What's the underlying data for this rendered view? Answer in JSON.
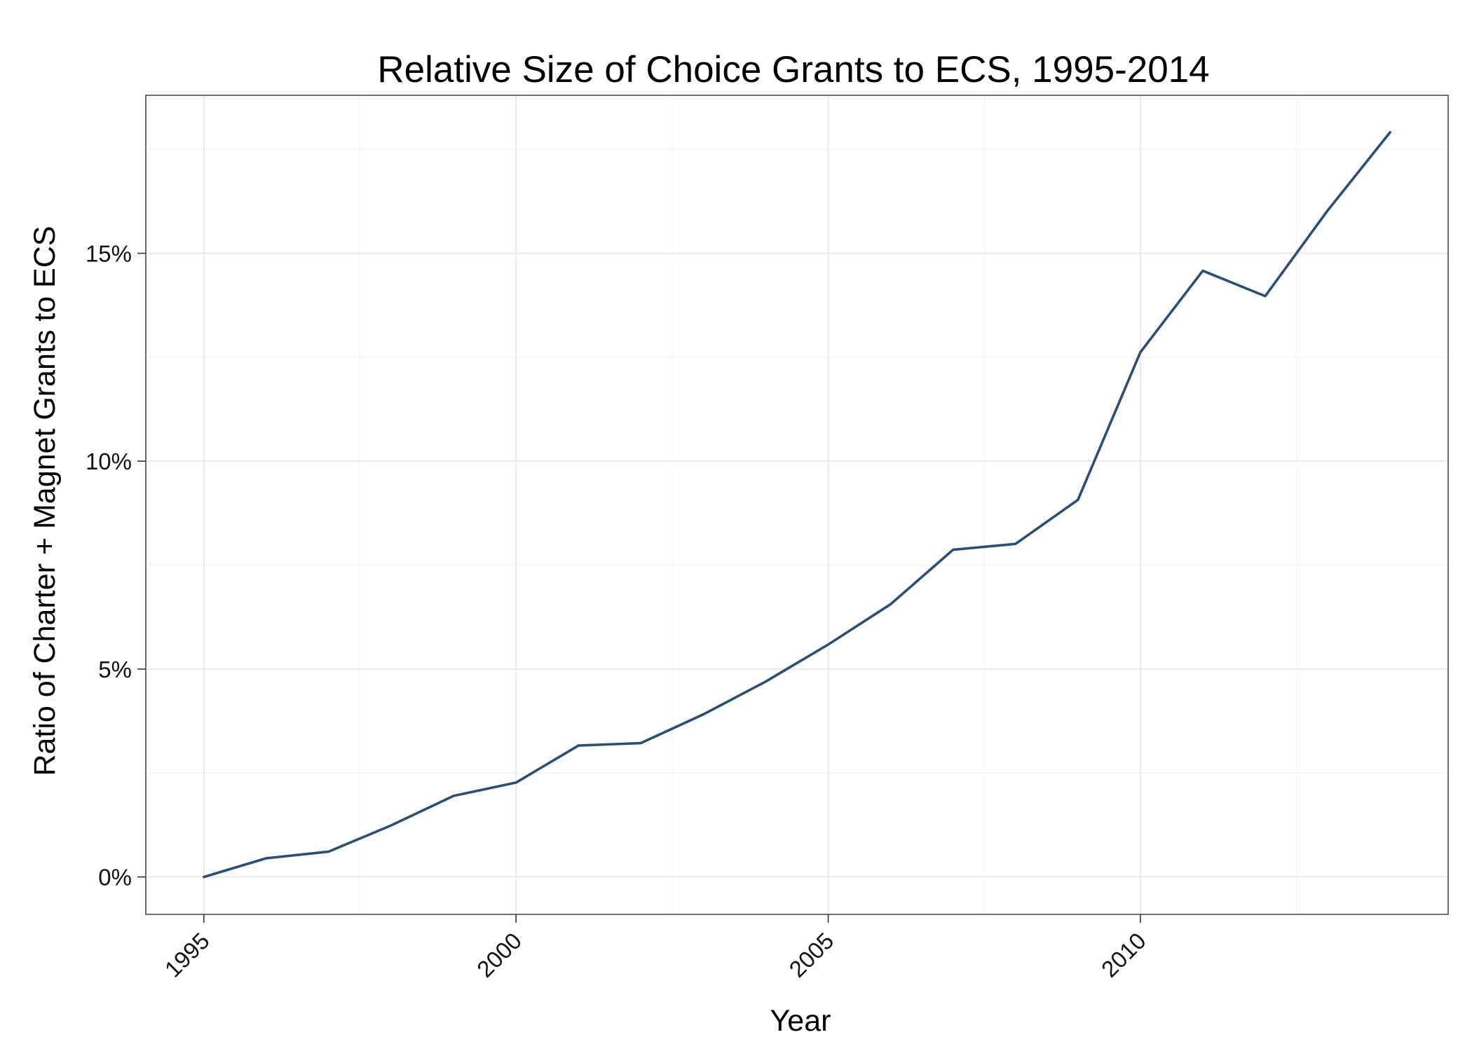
{
  "chart_data": {
    "type": "line",
    "title": "Relative Size of Choice Grants to ECS, 1995-2014",
    "xlabel": "Year",
    "ylabel": "Ratio of Charter + Magnet Grants to ECS",
    "xlim": [
      1994.07,
      2014.93
    ],
    "ylim": [
      -0.009,
      0.188
    ],
    "x_ticks": [
      {
        "value": 1995,
        "label": "1995"
      },
      {
        "value": 2000,
        "label": "2000"
      },
      {
        "value": 2005,
        "label": "2005"
      },
      {
        "value": 2010,
        "label": "2010"
      }
    ],
    "y_ticks": [
      {
        "value": 0.0,
        "label": "0%"
      },
      {
        "value": 0.05,
        "label": "5%"
      },
      {
        "value": 0.1,
        "label": "10%"
      },
      {
        "value": 0.15,
        "label": "15%"
      }
    ],
    "grid": true,
    "series": [
      {
        "name": "Ratio of Charter + Magnet Grants to ECS",
        "color": "#2c4e74",
        "x": [
          1995,
          1996,
          1997,
          1998,
          1999,
          2000,
          2001,
          2002,
          2003,
          2004,
          2005,
          2006,
          2007,
          2008,
          2009,
          2010,
          2011,
          2012,
          2013,
          2014
        ],
        "y": [
          0.0,
          0.0045,
          0.0061,
          0.0124,
          0.0195,
          0.0227,
          0.0316,
          0.0322,
          0.0391,
          0.047,
          0.0559,
          0.0656,
          0.0787,
          0.0801,
          0.0907,
          0.1262,
          0.1458,
          0.1397,
          0.1603,
          0.1791
        ]
      }
    ]
  }
}
